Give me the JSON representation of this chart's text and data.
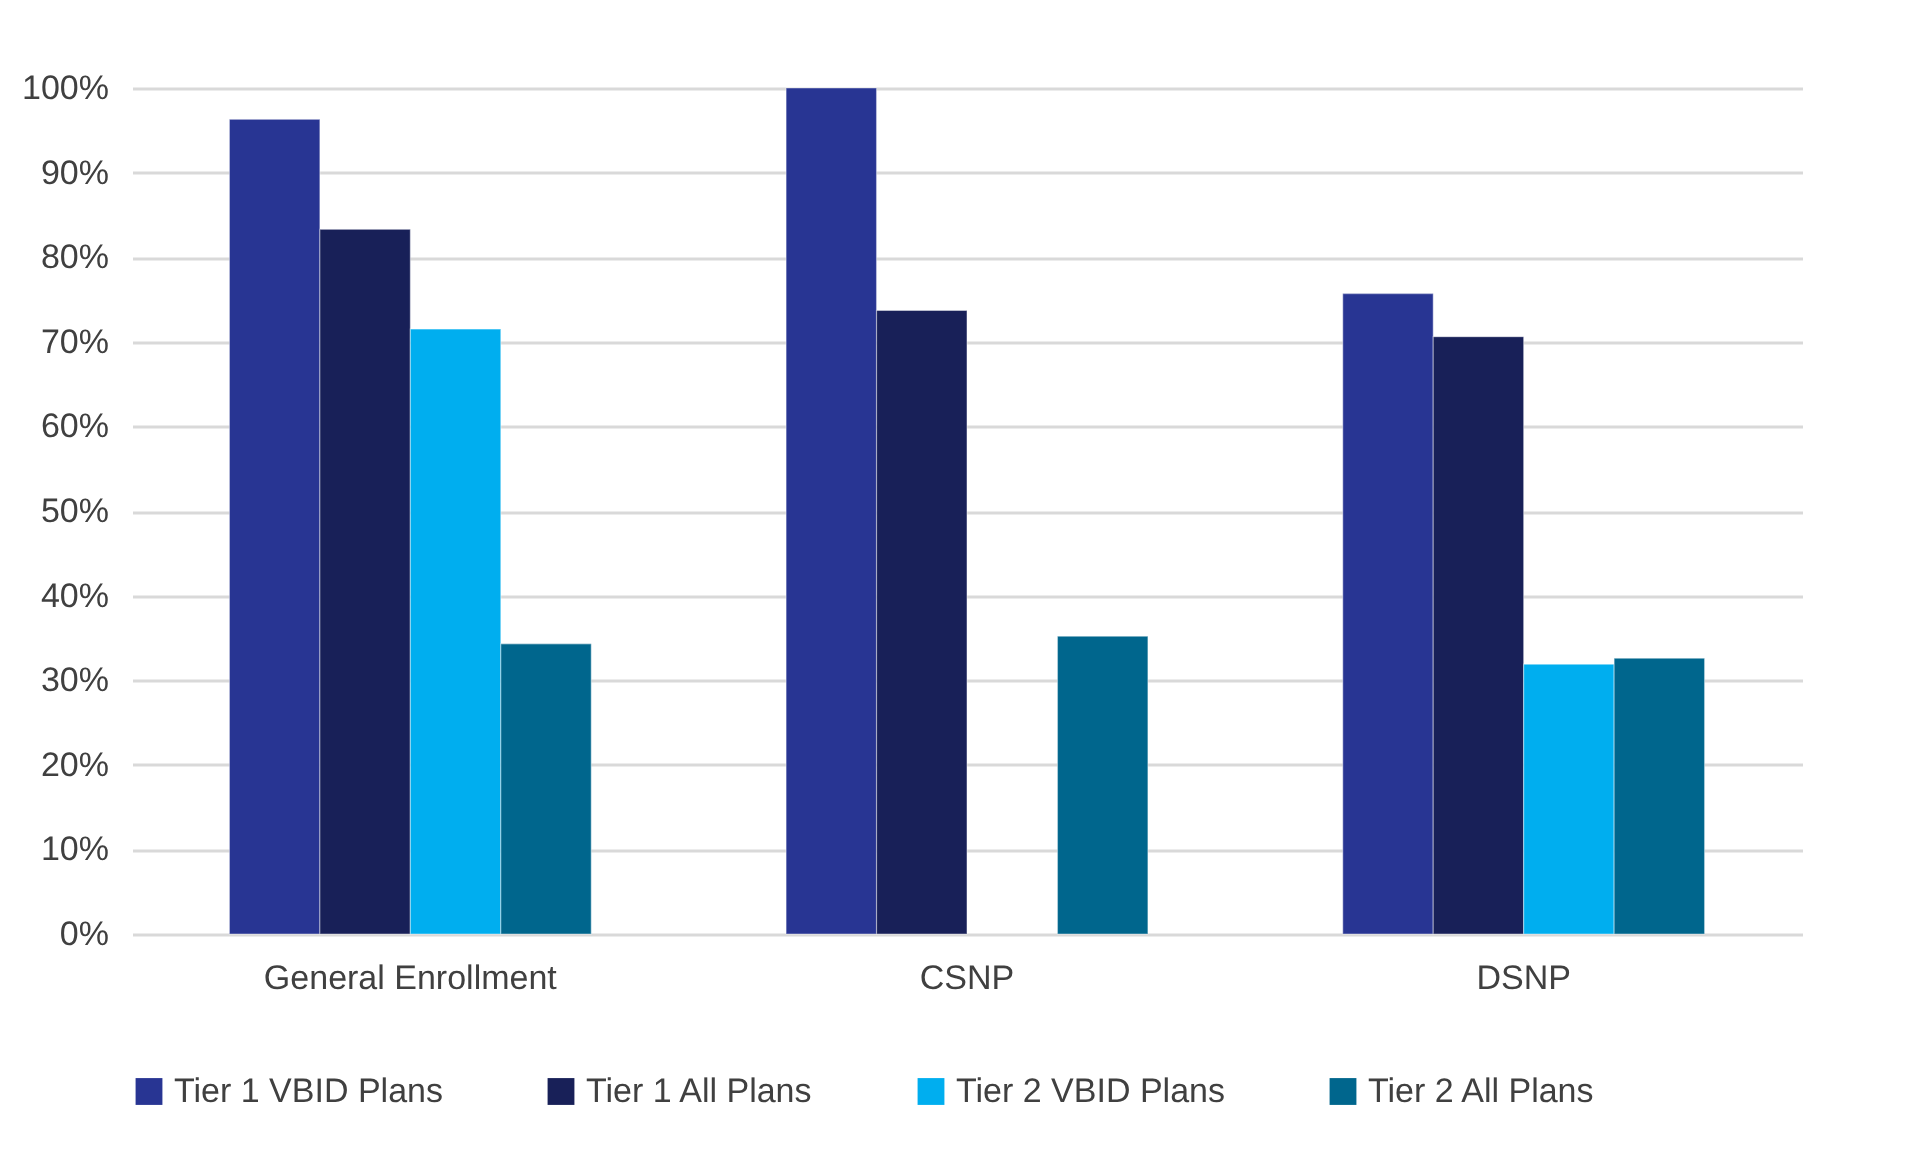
{
  "chart_data": {
    "type": "bar",
    "categories": [
      "General Enrollment",
      "CSNP",
      "DSNP"
    ],
    "series": [
      {
        "name": "Tier 1 VBID Plans",
        "color": "#283593",
        "values": [
          96.3,
          100,
          75.7
        ]
      },
      {
        "name": "Tier 1 All Plans",
        "color": "#182058",
        "values": [
          83.3,
          73.7,
          70.6
        ]
      },
      {
        "name": "Tier 2 VBID Plans",
        "color": "#00aeef",
        "values": [
          71.5,
          null,
          31.9
        ]
      },
      {
        "name": "Tier 2 All Plans",
        "color": "#00668d",
        "values": [
          34.3,
          35.2,
          32.6
        ]
      }
    ],
    "ylim": [
      0,
      100
    ],
    "yticks": [
      {
        "value": 0,
        "label": "0%"
      },
      {
        "value": 10,
        "label": "10%"
      },
      {
        "value": 20,
        "label": "20%"
      },
      {
        "value": 30,
        "label": "30%"
      },
      {
        "value": 40,
        "label": "40%"
      },
      {
        "value": 50,
        "label": "50%"
      },
      {
        "value": 60,
        "label": "60%"
      },
      {
        "value": 70,
        "label": "70%"
      },
      {
        "value": 80,
        "label": "80%"
      },
      {
        "value": 90,
        "label": "90%"
      },
      {
        "value": 100,
        "label": "100%"
      }
    ],
    "grid": "y",
    "legend": "bottom"
  }
}
